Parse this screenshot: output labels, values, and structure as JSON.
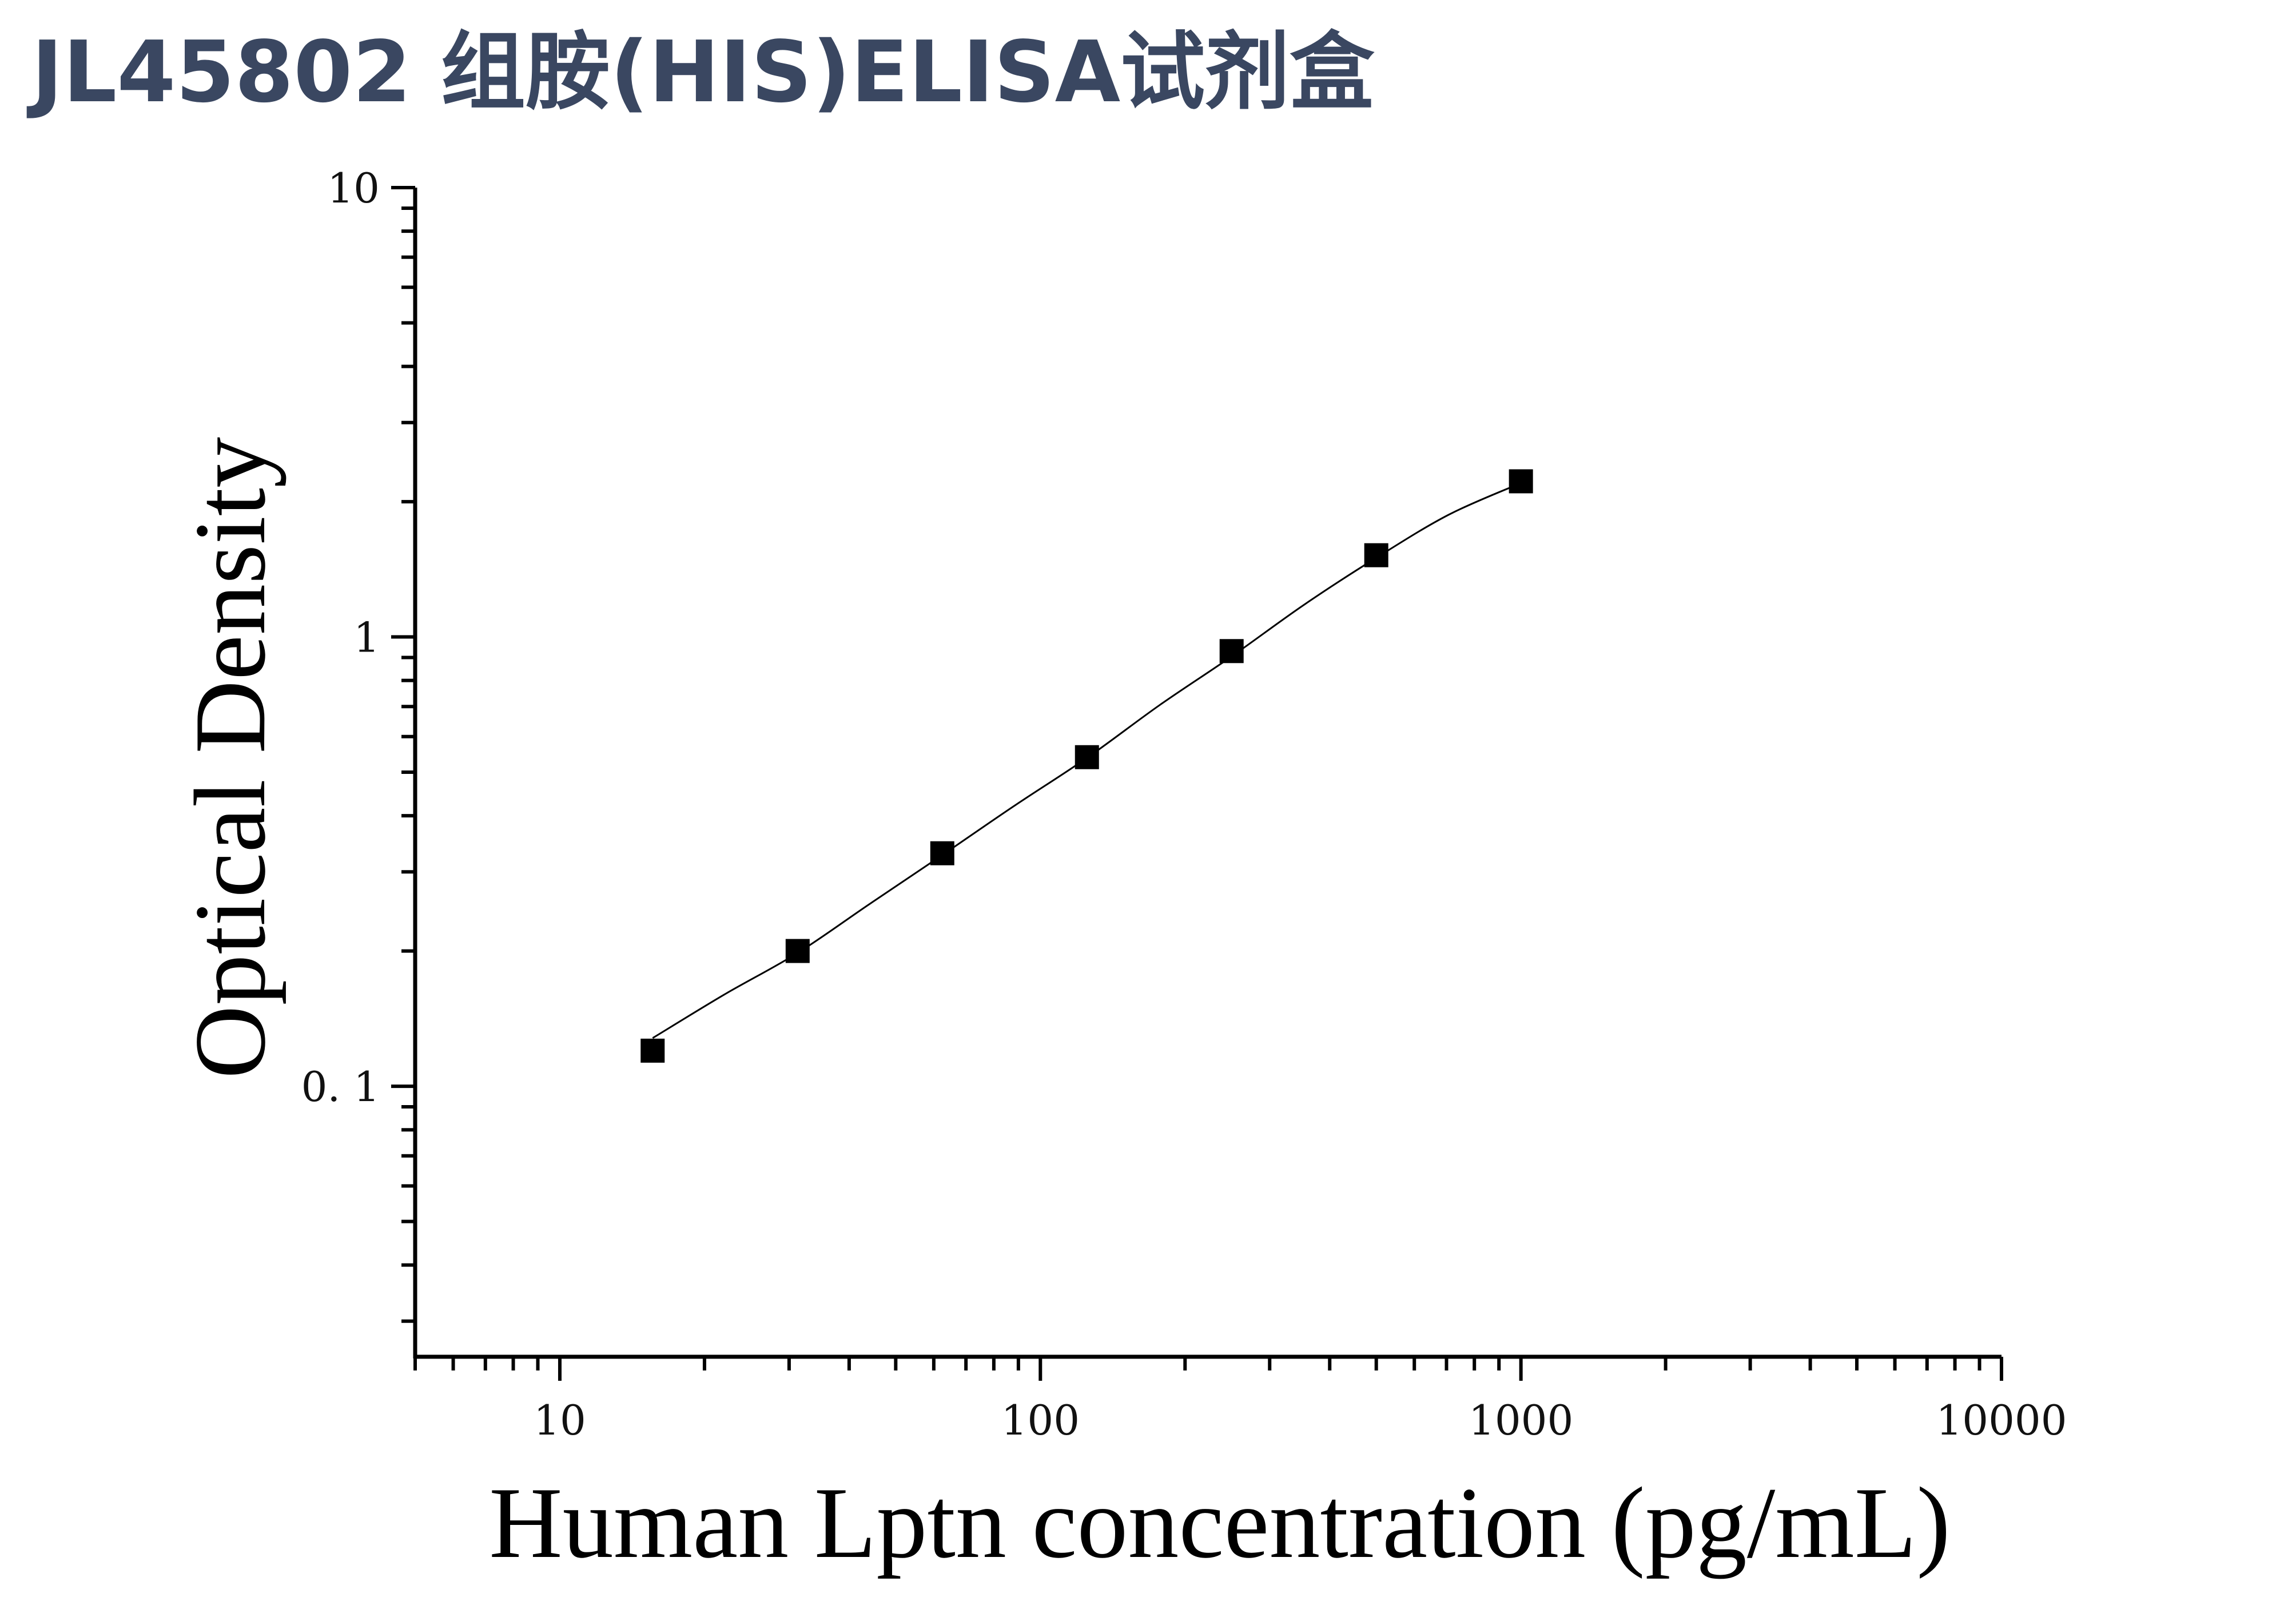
{
  "page": {
    "title": "JL45802 组胺(HIS)ELISA试剂盒",
    "title_color": "#3a4761"
  },
  "chart_data": {
    "type": "scatter",
    "title": "",
    "xlabel": "Human Lptn concentration (pg/mL)",
    "ylabel": "Optical Density",
    "xscale": "log",
    "yscale": "log",
    "xlim": [
      5,
      10000
    ],
    "ylim": [
      0.025,
      10
    ],
    "x_ticks": [
      10,
      100,
      1000,
      10000
    ],
    "x_tick_labels": [
      "10",
      "100",
      "1000",
      "10000"
    ],
    "y_ticks": [
      0.1,
      1,
      10
    ],
    "y_tick_labels": [
      "0. 1",
      "1",
      "10"
    ],
    "grid": false,
    "legend": "none",
    "series": [
      {
        "marker": "square",
        "color": "#000000",
        "x": [
          15.6,
          31.25,
          62.5,
          125,
          250,
          500,
          1000
        ],
        "y": [
          0.12,
          0.2,
          0.33,
          0.54,
          0.93,
          1.52,
          2.22
        ]
      }
    ],
    "fit_curve": {
      "color": "#000000",
      "x": [
        15.6,
        22,
        31.25,
        44,
        62.5,
        88,
        125,
        177,
        250,
        354,
        500,
        707,
        1000
      ],
      "y": [
        0.128,
        0.16,
        0.198,
        0.254,
        0.327,
        0.42,
        0.538,
        0.705,
        0.905,
        1.18,
        1.5,
        1.87,
        2.2
      ]
    }
  }
}
